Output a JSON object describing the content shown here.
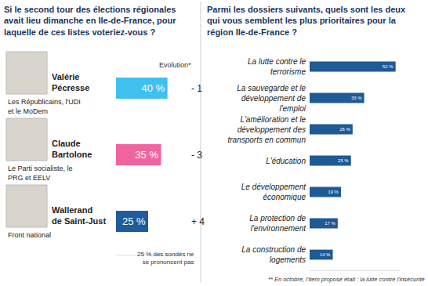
{
  "chart_data": [
    {
      "type": "bar",
      "title": "Si le second tour des élections régionales avait lieu dimanche en Ile-de-France, pour laquelle de ces listes voteriez-vous ?",
      "orientation": "horizontal",
      "categories": [
        "Valérie Pécresse",
        "Claude Bartolone",
        "Wallerand de Saint-Just"
      ],
      "lists": [
        "Les Républicains, l'UDI et le MoDem",
        "Le Parti socialiste, le PRG et EELV",
        "Front national"
      ],
      "values": [
        40,
        35,
        25
      ],
      "value_labels": [
        "40 %",
        "35 %",
        "25 %"
      ],
      "colors": [
        "#3fc0ee",
        "#f0649f",
        "#1f5c9c"
      ],
      "evolution_title": "Evolution*",
      "evolution": [
        -1,
        -3,
        4
      ],
      "evolution_labels": [
        "- 1",
        "- 3",
        "+ 4"
      ],
      "note": "25 % des sondés ne se prononcent pas",
      "xlim": [
        0,
        50
      ],
      "xticks": [],
      "data_labels": true,
      "tick_labels": false,
      "grid": false
    },
    {
      "type": "bar",
      "title": "Parmi les dossiers suivants, quels sont les deux qui vous semblent les plus prioritaires pour la région Ile-de-France ?",
      "orientation": "horizontal",
      "categories": [
        "La lutte contre le terrorisme",
        "La sauvegarde et le développement de l'emploi",
        "L'amélioration et le développement des transports en commun",
        "L'éducation",
        "Le développement économique",
        "La protection de l'environnement",
        "La construction de logements"
      ],
      "values": [
        52,
        33,
        26,
        25,
        19,
        17,
        14
      ],
      "value_labels": [
        "52 %",
        "33 %",
        "26 %",
        "25 %",
        "19 %",
        "17 %",
        "14 %"
      ],
      "color": "#1e5a96",
      "footnote": "** En octobre, l'item proposé était : la lutte contre l'insécurité",
      "xlim": [
        0,
        55
      ],
      "xticks": [],
      "data_labels": true,
      "tick_labels": "y",
      "grid": false
    }
  ]
}
